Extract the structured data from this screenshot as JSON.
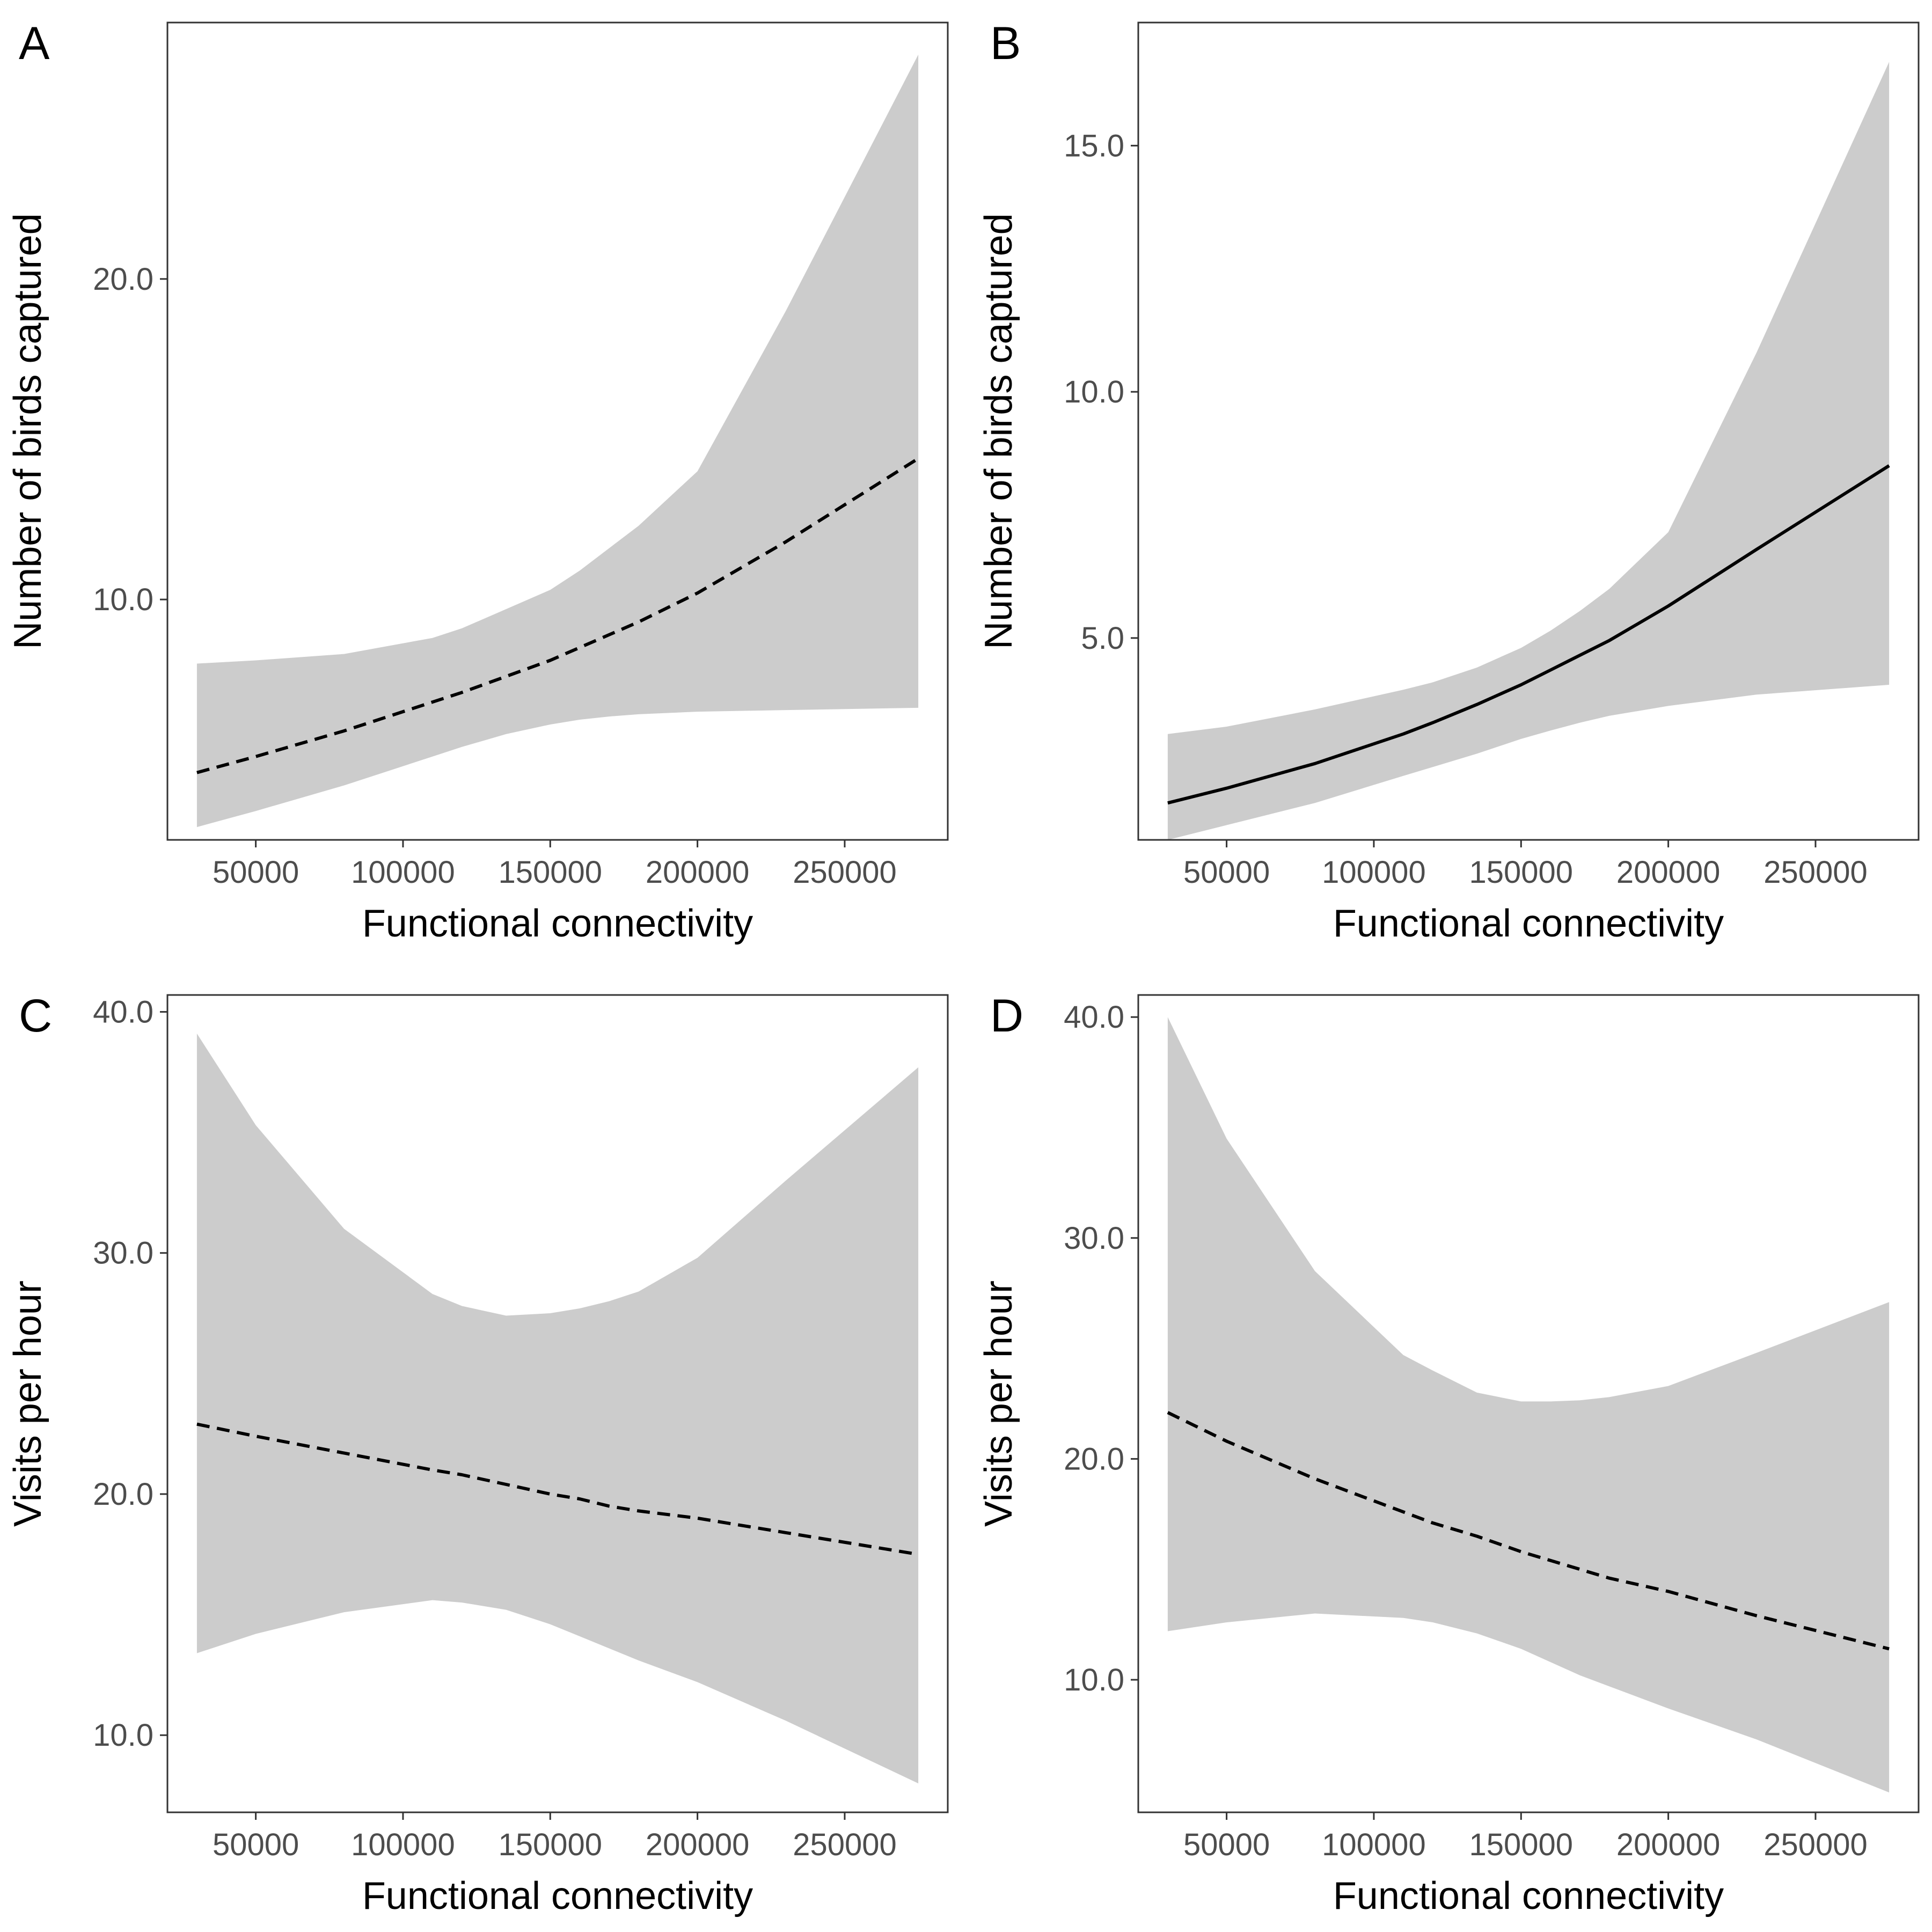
{
  "figure": {
    "colors": {
      "ribbon": "#cccccc",
      "line": "#000000",
      "frame": "#333333",
      "tick_text": "#4d4d4d"
    }
  },
  "chart_data": [
    {
      "panel": "A",
      "type": "line",
      "xlabel": "Functional connectivity",
      "ylabel": "Number of birds captured",
      "xlim": [
        20000,
        285000
      ],
      "ylim": [
        2.5,
        28
      ],
      "xticks": [
        50000,
        100000,
        150000,
        200000,
        250000
      ],
      "xtick_labels": [
        "50000",
        "100000",
        "150000",
        "200000",
        "250000"
      ],
      "yticks": [
        10,
        20
      ],
      "ytick_labels": [
        "10.0",
        "20.0"
      ],
      "linestyle": "dashed",
      "grid": false,
      "legend": false,
      "x": [
        30000,
        50000,
        80000,
        110000,
        120000,
        135000,
        150000,
        160000,
        170000,
        180000,
        200000,
        230000,
        275000
      ],
      "y": [
        4.6,
        5.1,
        5.9,
        6.8,
        7.1,
        7.6,
        8.1,
        8.5,
        8.9,
        9.3,
        10.2,
        11.8,
        14.4
      ],
      "upper": [
        8.0,
        8.1,
        8.3,
        8.8,
        9.1,
        9.7,
        10.3,
        10.9,
        11.6,
        12.3,
        14.0,
        19.0,
        27.0
      ],
      "lower": [
        2.9,
        3.4,
        4.2,
        5.1,
        5.4,
        5.8,
        6.1,
        6.25,
        6.35,
        6.42,
        6.5,
        6.55,
        6.62
      ]
    },
    {
      "panel": "B",
      "type": "line",
      "xlabel": "Functional connectivity",
      "ylabel": "Number of birds captured",
      "xlim": [
        20000,
        285000
      ],
      "ylim": [
        0.9,
        17.5
      ],
      "xticks": [
        50000,
        100000,
        150000,
        200000,
        250000
      ],
      "xtick_labels": [
        "50000",
        "100000",
        "150000",
        "200000",
        "250000"
      ],
      "yticks": [
        5,
        10,
        15
      ],
      "ytick_labels": [
        "5.0",
        "10.0",
        "15.0"
      ],
      "linestyle": "solid",
      "grid": false,
      "legend": false,
      "x": [
        30000,
        50000,
        80000,
        110000,
        120000,
        135000,
        150000,
        160000,
        170000,
        180000,
        200000,
        230000,
        275000
      ],
      "y": [
        1.65,
        1.95,
        2.45,
        3.05,
        3.28,
        3.65,
        4.05,
        4.35,
        4.65,
        4.95,
        5.65,
        6.8,
        8.5
      ],
      "upper": [
        3.05,
        3.2,
        3.55,
        3.95,
        4.1,
        4.4,
        4.8,
        5.15,
        5.55,
        6.0,
        7.15,
        10.8,
        16.7
      ],
      "lower": [
        0.9,
        1.2,
        1.65,
        2.2,
        2.38,
        2.65,
        2.95,
        3.12,
        3.28,
        3.42,
        3.62,
        3.85,
        4.05
      ]
    },
    {
      "panel": "C",
      "type": "line",
      "xlabel": "Functional connectivity",
      "ylabel": "Visits per hour",
      "xlim": [
        20000,
        285000
      ],
      "ylim": [
        6.8,
        40.7
      ],
      "xticks": [
        50000,
        100000,
        150000,
        200000,
        250000
      ],
      "xtick_labels": [
        "50000",
        "100000",
        "150000",
        "200000",
        "250000"
      ],
      "yticks": [
        10,
        20,
        30,
        40
      ],
      "ytick_labels": [
        "10.0",
        "20.0",
        "30.0",
        "40.0"
      ],
      "linestyle": "dashed",
      "grid": false,
      "legend": false,
      "x": [
        30000,
        50000,
        80000,
        110000,
        120000,
        135000,
        150000,
        160000,
        170000,
        180000,
        200000,
        230000,
        275000
      ],
      "y": [
        22.9,
        22.4,
        21.7,
        21.0,
        20.8,
        20.4,
        20.0,
        19.8,
        19.5,
        19.3,
        19.0,
        18.4,
        17.5
      ],
      "upper": [
        39.1,
        35.3,
        31.0,
        28.3,
        27.8,
        27.4,
        27.5,
        27.7,
        28.0,
        28.4,
        29.8,
        33.0,
        37.7
      ],
      "lower": [
        13.4,
        14.2,
        15.1,
        15.6,
        15.5,
        15.2,
        14.6,
        14.1,
        13.6,
        13.1,
        12.2,
        10.6,
        8.0
      ]
    },
    {
      "panel": "D",
      "type": "line",
      "xlabel": "Functional connectivity",
      "ylabel": "Visits per hour",
      "xlim": [
        20000,
        285000
      ],
      "ylim": [
        4.0,
        41.0
      ],
      "xticks": [
        50000,
        100000,
        150000,
        200000,
        250000
      ],
      "xtick_labels": [
        "50000",
        "100000",
        "150000",
        "200000",
        "250000"
      ],
      "yticks": [
        10,
        20,
        30,
        40
      ],
      "ytick_labels": [
        "10.0",
        "20.0",
        "30.0",
        "40.0"
      ],
      "linestyle": "dashed",
      "grid": false,
      "legend": false,
      "x": [
        30000,
        50000,
        80000,
        110000,
        120000,
        135000,
        150000,
        160000,
        170000,
        180000,
        200000,
        230000,
        275000
      ],
      "y": [
        22.1,
        20.8,
        19.1,
        17.6,
        17.1,
        16.5,
        15.8,
        15.4,
        15.0,
        14.6,
        14.0,
        12.9,
        11.4
      ],
      "upper": [
        40.0,
        34.5,
        28.5,
        24.7,
        24.0,
        23.0,
        22.6,
        22.6,
        22.65,
        22.8,
        23.3,
        24.8,
        27.1
      ],
      "lower": [
        12.2,
        12.6,
        13.0,
        12.8,
        12.6,
        12.1,
        11.4,
        10.8,
        10.2,
        9.7,
        8.7,
        7.3,
        4.9
      ]
    }
  ]
}
